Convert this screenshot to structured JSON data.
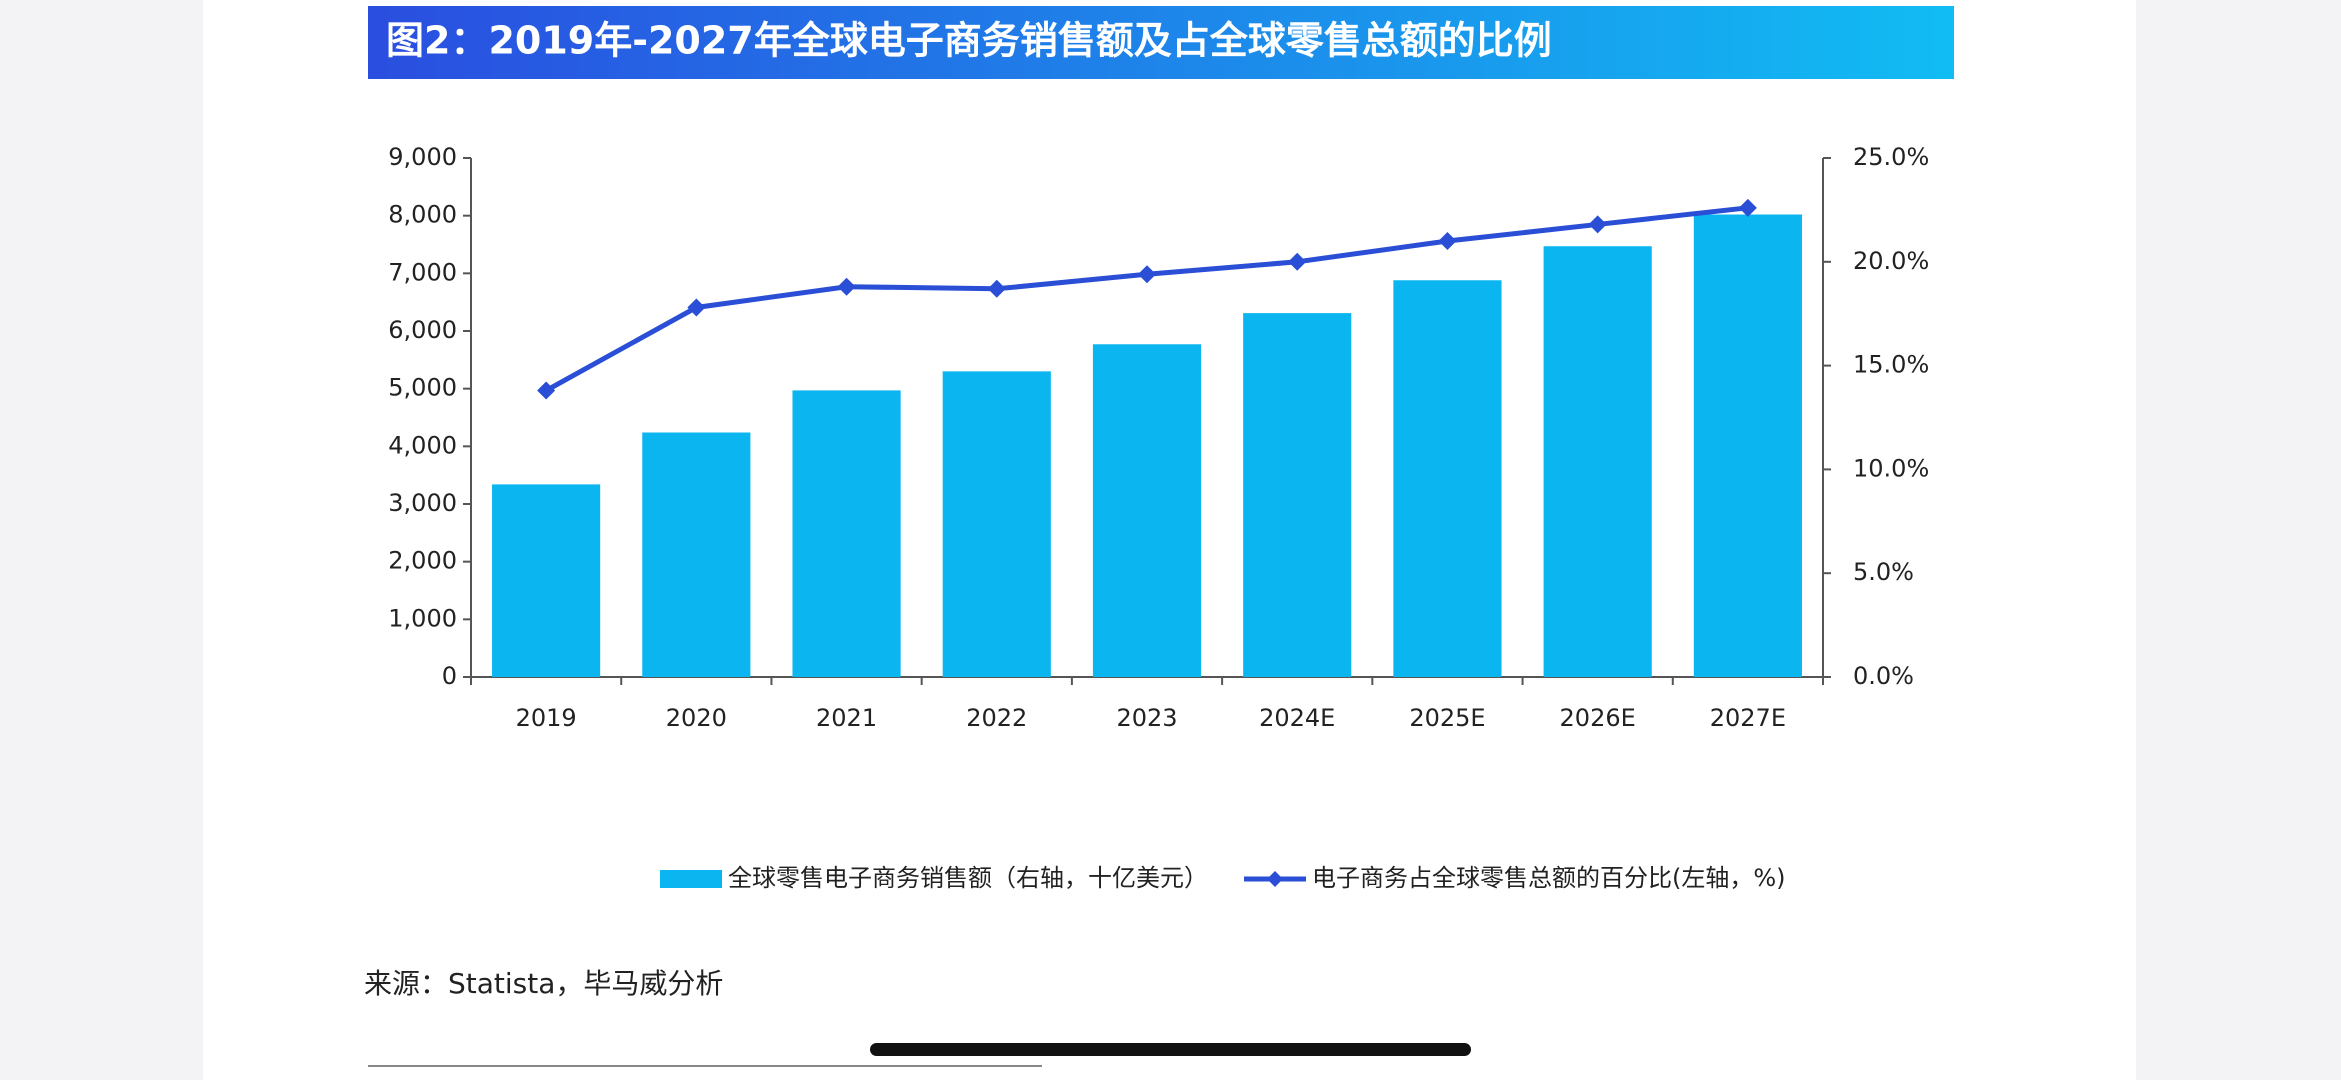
{
  "chart_data": {
    "type": "bar-line",
    "title": "图2：2019年-2027年全球电子商务销售额及占全球零售总额的比例",
    "categories": [
      "2019",
      "2020",
      "2021",
      "2022",
      "2023",
      "2024E",
      "2025E",
      "2026E",
      "2027E"
    ],
    "series": [
      {
        "name": "全球零售电子商务销售额（右轴，十亿美元）",
        "type": "bar",
        "color": "#0bb5ef",
        "axis": "y",
        "values": [
          3340,
          4240,
          4970,
          5300,
          5770,
          6310,
          6880,
          7470,
          8020
        ]
      },
      {
        "name": "电子商务占全球零售总额的百分比(左轴，%)",
        "type": "line",
        "color": "#2a4fd6",
        "axis": "y2",
        "values": [
          13.8,
          17.8,
          18.8,
          18.7,
          19.4,
          20.0,
          21.0,
          21.8,
          22.6
        ]
      }
    ],
    "ylim": [
      0,
      9000
    ],
    "yticks": [
      0,
      {
        "value": 1000,
        "label": "1,000"
      },
      {
        "value": 2000,
        "label": "2,000"
      },
      {
        "value": 3000,
        "label": "3,000"
      },
      {
        "value": 4000,
        "label": "4,000"
      },
      {
        "value": 5000,
        "label": "5,000"
      },
      {
        "value": 6000,
        "label": "6,000"
      },
      {
        "value": 7000,
        "label": "7,000"
      },
      {
        "value": 8000,
        "label": "8,000"
      },
      {
        "value": 9000,
        "label": "9,000"
      }
    ],
    "y2lim": [
      0,
      25
    ],
    "y2ticks": [
      {
        "value": 0,
        "label": "0.0%"
      },
      {
        "value": 5,
        "label": "5.0%"
      },
      {
        "value": 10,
        "label": "10.0%"
      },
      {
        "value": 15,
        "label": "15.0%"
      },
      {
        "value": 20,
        "label": "20.0%"
      },
      {
        "value": 25,
        "label": "25.0%"
      }
    ],
    "legend": "bottom"
  },
  "source": "来源：Statista，毕马威分析"
}
